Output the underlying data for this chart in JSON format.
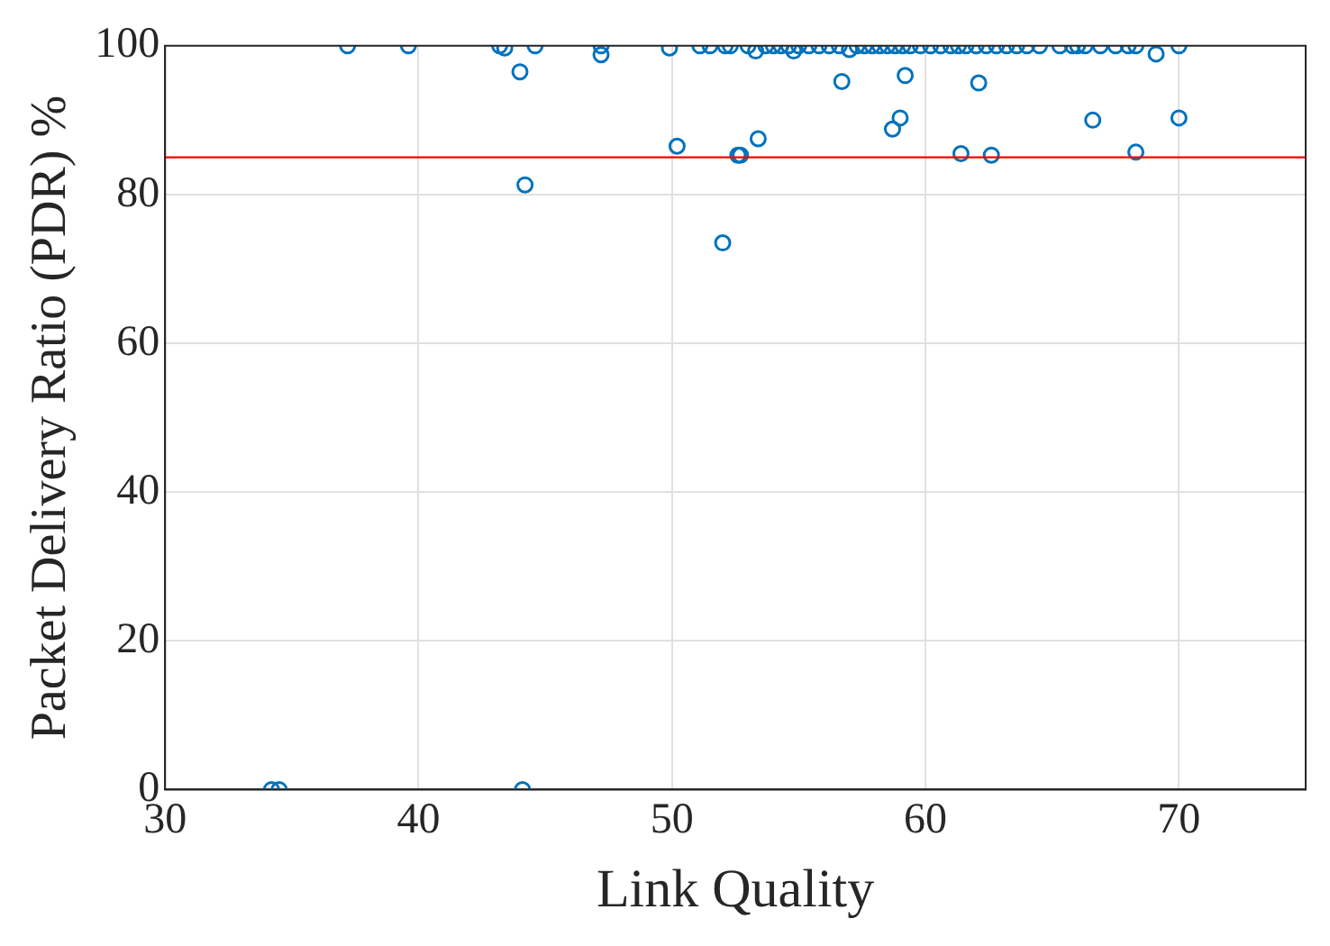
{
  "chart_data": {
    "type": "scatter",
    "xlabel": "Link Quality",
    "ylabel": "Packet Delivery Ratio (PDR) %",
    "x": [
      34.2,
      34.5,
      44.1,
      37.2,
      39.6,
      43.2,
      43.4,
      44.6,
      44.0,
      44.2,
      47.2,
      47.2,
      49.9,
      50.2,
      51.1,
      51.5,
      52.0,
      52.1,
      52.6,
      52.7,
      53.4,
      52.3,
      53.0,
      53.3,
      53.7,
      54.0,
      54.3,
      54.6,
      54.8,
      55.0,
      55.4,
      55.8,
      56.2,
      56.6,
      56.7,
      57.0,
      57.3,
      57.6,
      57.9,
      58.2,
      58.5,
      58.7,
      58.8,
      59.0,
      59.1,
      59.2,
      59.4,
      59.8,
      60.2,
      60.6,
      61.0,
      61.3,
      61.4,
      61.6,
      62.0,
      62.1,
      62.4,
      62.6,
      62.8,
      63.2,
      63.6,
      64.0,
      64.5,
      65.3,
      65.8,
      66.0,
      66.3,
      66.6,
      66.9,
      67.5,
      68.0,
      68.3,
      68.3,
      69.1,
      70.0,
      70.0
    ],
    "values": [
      0,
      0,
      0,
      100,
      100,
      100,
      99.7,
      100,
      96.5,
      81.3,
      100,
      98.8,
      99.7,
      86.5,
      100,
      100,
      73.5,
      100,
      85.3,
      85.3,
      87.5,
      100,
      100,
      99.3,
      100,
      100,
      100,
      100,
      99.3,
      100,
      100,
      100,
      100,
      100,
      95.2,
      99.5,
      100,
      100,
      100,
      100,
      100,
      88.8,
      100,
      90.3,
      100,
      96.0,
      100,
      100,
      100,
      100,
      100,
      100,
      85.5,
      100,
      100,
      95.0,
      100,
      85.3,
      100,
      100,
      100,
      100,
      100,
      100,
      100,
      100,
      100,
      90.0,
      100,
      100,
      100,
      100,
      85.7,
      98.9,
      90.3,
      100
    ],
    "color": "#0072bd",
    "marker": "circle",
    "xlim": [
      30,
      75
    ],
    "xticks": [
      30,
      40,
      50,
      60,
      70
    ],
    "ylim": [
      0,
      100
    ],
    "yticks": [
      0,
      20,
      40,
      60,
      80,
      100
    ],
    "grid": true,
    "legend": false,
    "ref_lines": [
      {
        "axis": "y",
        "value": 85,
        "color": "#ff0000"
      }
    ]
  }
}
